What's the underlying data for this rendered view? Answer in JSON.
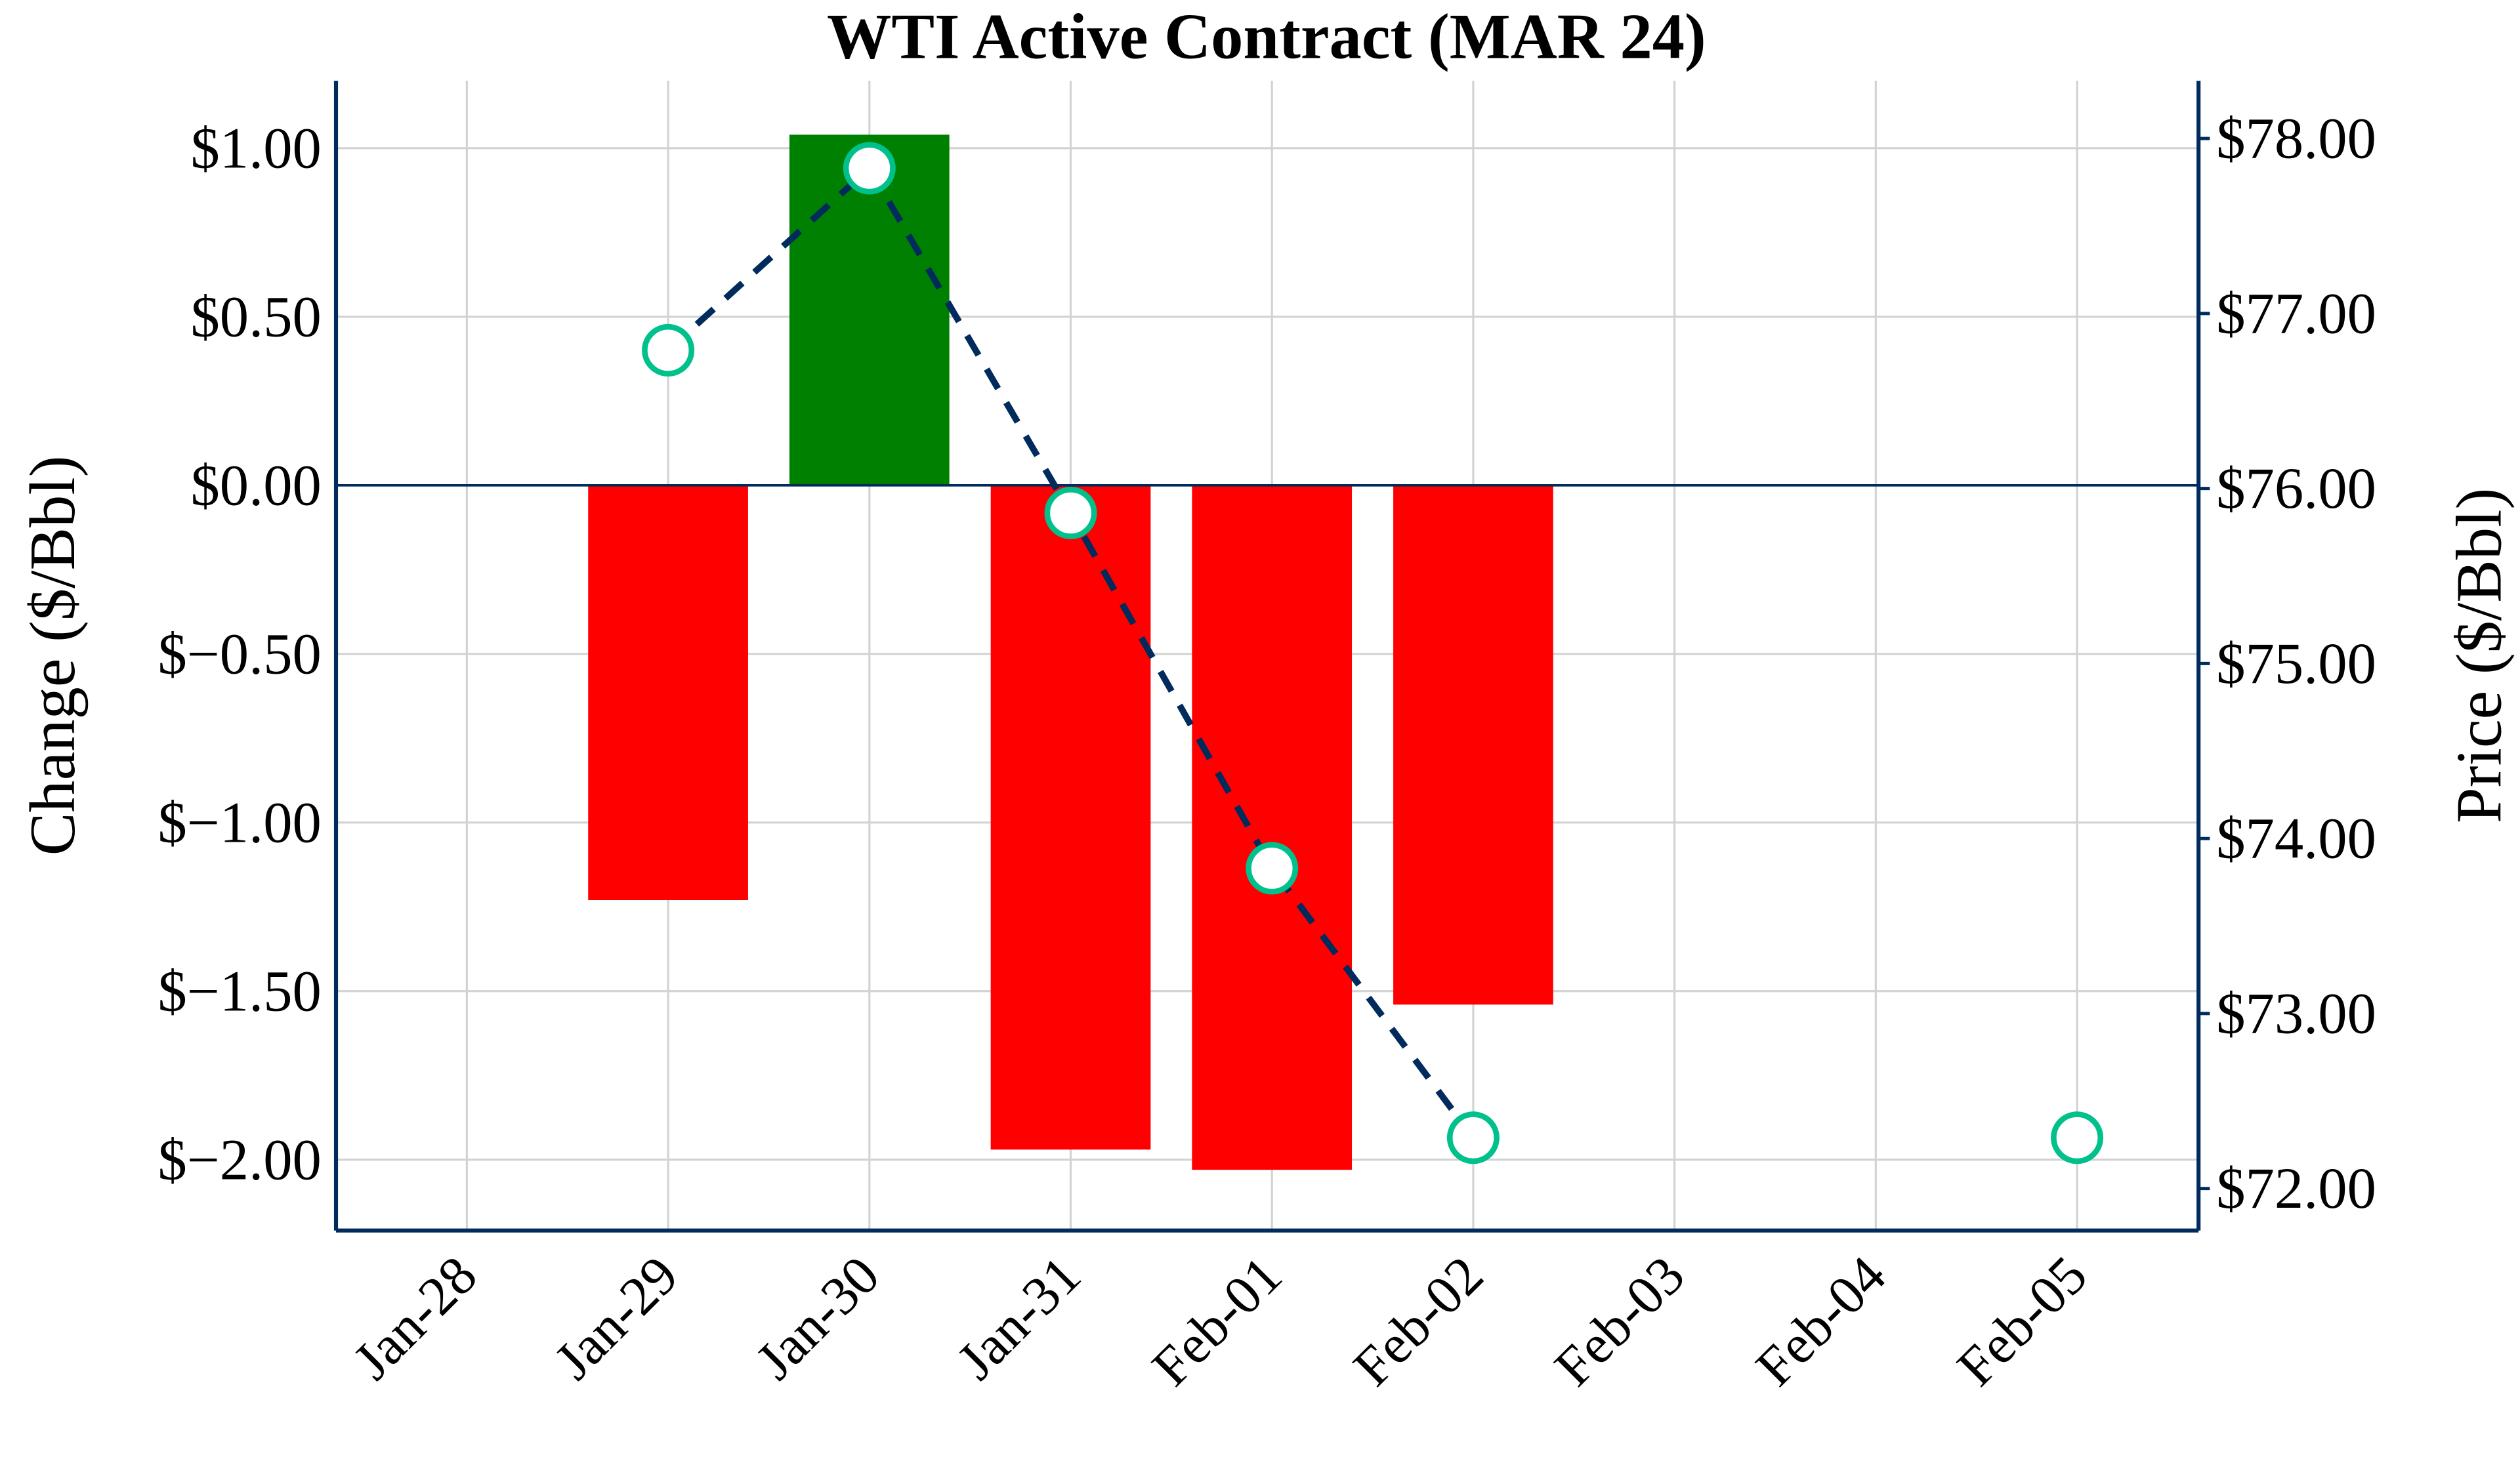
{
  "chart_data": {
    "type": "bar+line",
    "title": "WTI Active Contract (MAR 24)",
    "xlabel": "",
    "ylabel_left": "Change ($/Bbl)",
    "ylabel_right": "Price ($/Bbl)",
    "categories": [
      "Jan-28",
      "Jan-29",
      "Jan-30",
      "Jan-31",
      "Feb-01",
      "Feb-02",
      "Feb-03",
      "Feb-04",
      "Feb-05"
    ],
    "left_axis": {
      "ylim": [
        -2.21,
        1.2
      ],
      "ticks": [
        1.0,
        0.5,
        0.0,
        -0.5,
        -1.0,
        -1.5,
        -2.0
      ],
      "tick_labels": [
        "$1.00",
        "$0.50",
        "$0.00",
        "$−0.50",
        "$−1.00",
        "$−1.50",
        "$−2.00"
      ]
    },
    "right_axis": {
      "ylim": [
        71.76,
        78.33
      ],
      "ticks": [
        78,
        77,
        76,
        75,
        74,
        73,
        72
      ],
      "tick_labels": [
        "$78.00",
        "$77.00",
        "$76.00",
        "$75.00",
        "$74.00",
        "$73.00",
        "$72.00"
      ]
    },
    "bars": {
      "axis": "left",
      "x": [
        "Jan-29",
        "Jan-30",
        "Jan-31",
        "Feb-01",
        "Feb-02"
      ],
      "values": [
        -1.23,
        1.04,
        -1.97,
        -2.03,
        -1.54
      ],
      "positive_color": "#008000",
      "negative_color": "#ff0000"
    },
    "price_line": {
      "axis": "right",
      "x": [
        "Jan-29",
        "Jan-30",
        "Jan-31",
        "Feb-01",
        "Feb-02"
      ],
      "values": [
        76.79,
        77.83,
        75.86,
        73.83,
        72.29
      ],
      "line_color": "#002b5c",
      "line_style": "dashed"
    },
    "price_markers": {
      "axis": "right",
      "x": [
        "Jan-29",
        "Jan-30",
        "Jan-31",
        "Feb-01",
        "Feb-02",
        "Feb-05"
      ],
      "values": [
        76.79,
        77.83,
        75.86,
        73.83,
        72.29,
        72.29
      ],
      "edge_color": "#00c08b",
      "fill_color": "#ffffff"
    },
    "zero_line_color": "#002b5c",
    "axis_color": "#002b5c",
    "grid": true,
    "legend": "none"
  }
}
